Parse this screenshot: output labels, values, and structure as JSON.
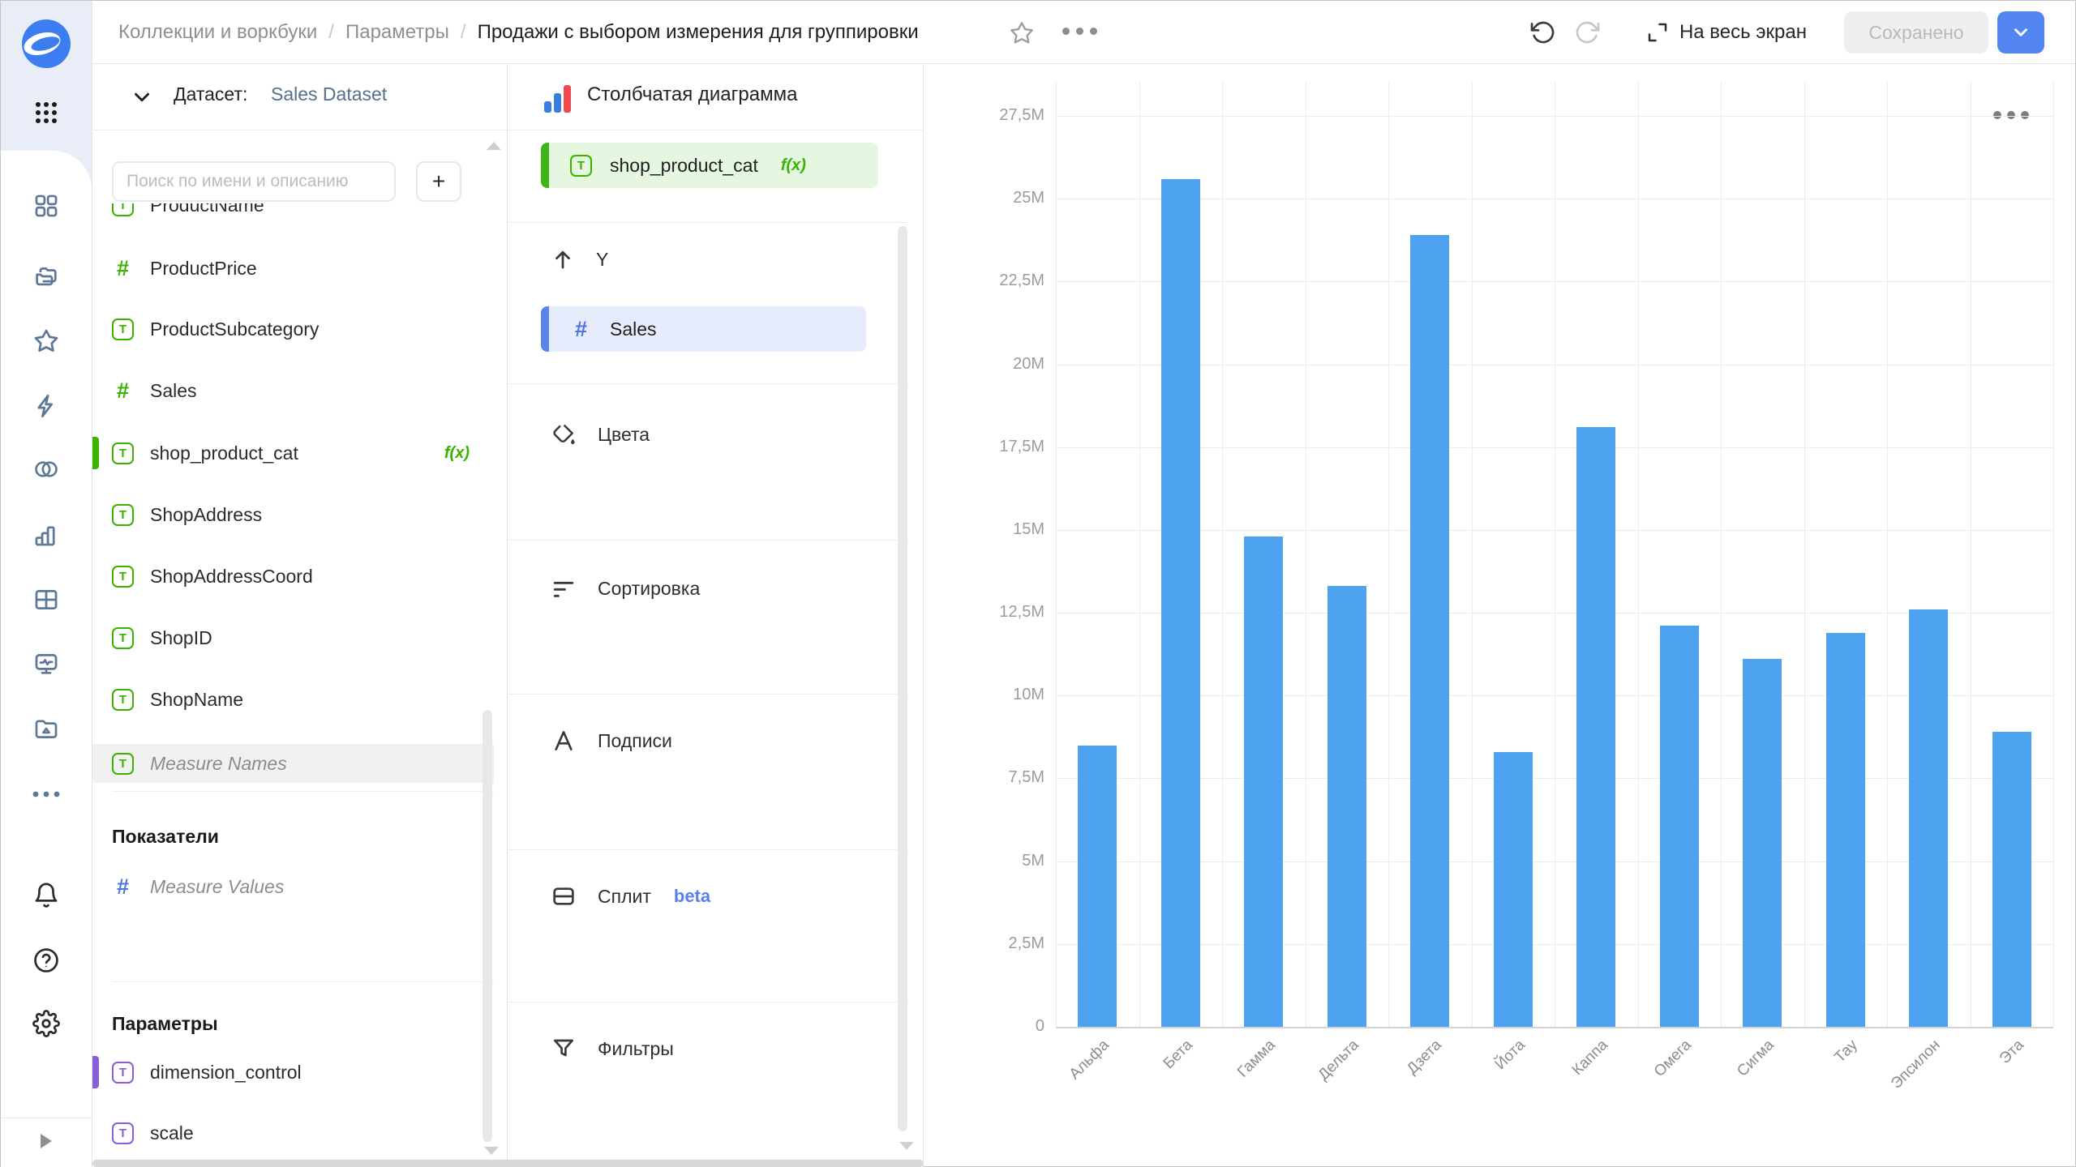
{
  "topbar": {
    "breadcrumb": [
      "Коллекции и воркбуки",
      "Параметры",
      "Продажи с выбором измерения для группировки"
    ],
    "separator": "/",
    "fullscreen_label": "На весь экран",
    "save_button": "Сохранено"
  },
  "sidebar": {
    "icons": [
      "datalens-logo",
      "apps-grid",
      "dashboards",
      "collections",
      "favorites",
      "quick-actions",
      "datasets",
      "charts",
      "tables",
      "monitoring",
      "storage",
      "more",
      "notifications",
      "help",
      "settings",
      "expand-panel"
    ]
  },
  "dataset_panel": {
    "label": "Датасет:",
    "dataset_name": "Sales Dataset",
    "search_placeholder": "Поиск по имени и описанию",
    "add_button": "+",
    "fx_badge": "f(x)",
    "fields": [
      {
        "name": "ProductName",
        "type": "string"
      },
      {
        "name": "ProductPrice",
        "type": "number"
      },
      {
        "name": "ProductSubcategory",
        "type": "string"
      },
      {
        "name": "Sales",
        "type": "number"
      },
      {
        "name": "shop_product_cat",
        "type": "string",
        "formula": true,
        "active": true
      },
      {
        "name": "ShopAddress",
        "type": "string"
      },
      {
        "name": "ShopAddressCoord",
        "type": "string"
      },
      {
        "name": "ShopID",
        "type": "string"
      },
      {
        "name": "ShopName",
        "type": "string"
      },
      {
        "name": "Measure Names",
        "type": "string",
        "system": true,
        "selected": true
      }
    ],
    "measures_title": "Показатели",
    "measures": [
      {
        "name": "Measure Values",
        "type": "number",
        "system": true
      }
    ],
    "parameters_title": "Параметры",
    "parameters": [
      {
        "name": "dimension_control",
        "active": true
      },
      {
        "name": "scale",
        "active": false
      }
    ]
  },
  "viz_panel": {
    "chart_type": "Столбчатая диаграмма",
    "x_chip": {
      "name": "shop_product_cat",
      "fx": "f(x)"
    },
    "y_section": {
      "label": "Y",
      "chip": "Sales"
    },
    "sections": [
      {
        "label": "Цвета"
      },
      {
        "label": "Сортировка"
      },
      {
        "label": "Подписи"
      },
      {
        "label": "Сплит",
        "badge": "beta"
      },
      {
        "label": "Фильтры"
      }
    ]
  },
  "chart_data": {
    "type": "bar",
    "title": "",
    "categories": [
      "Альфа",
      "Бета",
      "Гамма",
      "Дельта",
      "Дзета",
      "Йота",
      "Каппа",
      "Омега",
      "Сигма",
      "Тау",
      "Эпсилон",
      "Эта"
    ],
    "series": [
      {
        "name": "Sales",
        "values": [
          8.5,
          25.6,
          14.8,
          13.3,
          23.9,
          8.3,
          18.1,
          12.1,
          11.1,
          11.9,
          12.6,
          8.9
        ]
      }
    ],
    "value_unit": "M",
    "xlabel": "",
    "ylabel": "",
    "ylim": [
      0,
      27.5
    ],
    "ytick_step": 2.5,
    "ytick_labels": [
      "0",
      "2,5M",
      "5M",
      "7,5M",
      "10M",
      "12,5M",
      "15M",
      "17,5M",
      "20M",
      "22,5M",
      "25M",
      "27,5M"
    ],
    "grid": true,
    "legend": "none",
    "bar_color": "#4ea3f1"
  }
}
